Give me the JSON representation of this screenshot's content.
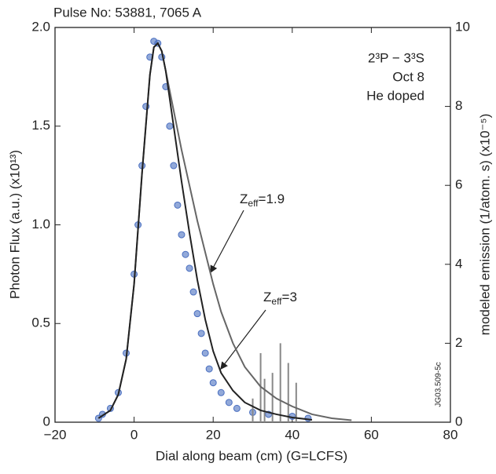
{
  "chart_data": {
    "type": "scatter-line",
    "title": "Pulse No: 53881, 7065 A",
    "xlabel": "Dial along beam (cm) (G=LCFS)",
    "ylabel": "Photon Flux (a.u.)  (x10¹³)",
    "y2label": "modeled emission (1/atom. s)  (x10⁻⁵)",
    "annotations": [
      "2³P − 3³S",
      "Oct 8",
      "He doped"
    ],
    "model_labels": [
      {
        "symbol": "Z",
        "sub": "eff",
        "text": "=1.9"
      },
      {
        "symbol": "Z",
        "sub": "eff",
        "text": "=3"
      }
    ],
    "code": "JG03.509-5c",
    "xlim": [
      -20,
      80
    ],
    "xticks": [
      {
        "value": -20,
        "label": "−20"
      },
      0,
      20,
      40,
      60,
      80
    ],
    "ylim": [
      0,
      2
    ],
    "yticks": [
      0,
      0.5,
      {
        "value": 1,
        "label": "1.0"
      },
      1.5,
      {
        "value": 2,
        "label": "2.0"
      }
    ],
    "y2lim": [
      0,
      10
    ],
    "y2ticks": [
      0,
      2,
      4,
      6,
      8,
      10
    ],
    "series": [
      {
        "style": "points",
        "color": "#4a6fc0",
        "x": [
          -9,
          -8,
          -6,
          -4,
          -2,
          0,
          1,
          2,
          3,
          4,
          5,
          6,
          7,
          8,
          9,
          10,
          11,
          12,
          13,
          14,
          15,
          16,
          17,
          18,
          19,
          20,
          22,
          24,
          26,
          30,
          34,
          40,
          44
        ],
        "values": [
          0.02,
          0.04,
          0.07,
          0.15,
          0.35,
          0.75,
          1.0,
          1.3,
          1.6,
          1.85,
          1.93,
          1.92,
          1.85,
          1.7,
          1.5,
          1.3,
          1.1,
          0.95,
          0.85,
          0.78,
          0.66,
          0.55,
          0.45,
          0.35,
          0.27,
          0.2,
          0.15,
          0.1,
          0.07,
          0.05,
          0.04,
          0.03,
          0.02
        ]
      },
      {
        "style": "spikes",
        "color": "#888888",
        "x": [
          30,
          32,
          33,
          35,
          37,
          39,
          41
        ],
        "values": [
          0.12,
          0.35,
          0.22,
          0.25,
          0.4,
          0.3,
          0.2
        ]
      },
      {
        "style": "line",
        "axis": "y2",
        "color": "#666666",
        "x": [
          -9,
          -6,
          -4,
          -2,
          0,
          2,
          4,
          5,
          6,
          7,
          8,
          10,
          12,
          14,
          16,
          18,
          20,
          22,
          25,
          28,
          32,
          36,
          40,
          45,
          50,
          55
        ],
        "values": [
          0.1,
          0.3,
          0.7,
          1.6,
          3.5,
          6.3,
          8.8,
          9.5,
          9.6,
          9.4,
          8.9,
          7.9,
          6.9,
          6.0,
          5.1,
          4.3,
          3.5,
          2.8,
          2.0,
          1.4,
          0.9,
          0.6,
          0.4,
          0.2,
          0.1,
          0.05
        ]
      },
      {
        "style": "line",
        "axis": "y2",
        "color": "#222222",
        "x": [
          -9,
          -6,
          -4,
          -2,
          0,
          2,
          4,
          5,
          6,
          7,
          8,
          10,
          12,
          14,
          16,
          18,
          20,
          22,
          25,
          28,
          32,
          36,
          40,
          45
        ],
        "values": [
          0.1,
          0.3,
          0.7,
          1.6,
          3.5,
          6.3,
          8.8,
          9.5,
          9.6,
          9.4,
          8.9,
          7.5,
          6.1,
          4.8,
          3.6,
          2.6,
          1.8,
          1.25,
          0.8,
          0.5,
          0.3,
          0.2,
          0.12,
          0.06
        ]
      }
    ]
  }
}
